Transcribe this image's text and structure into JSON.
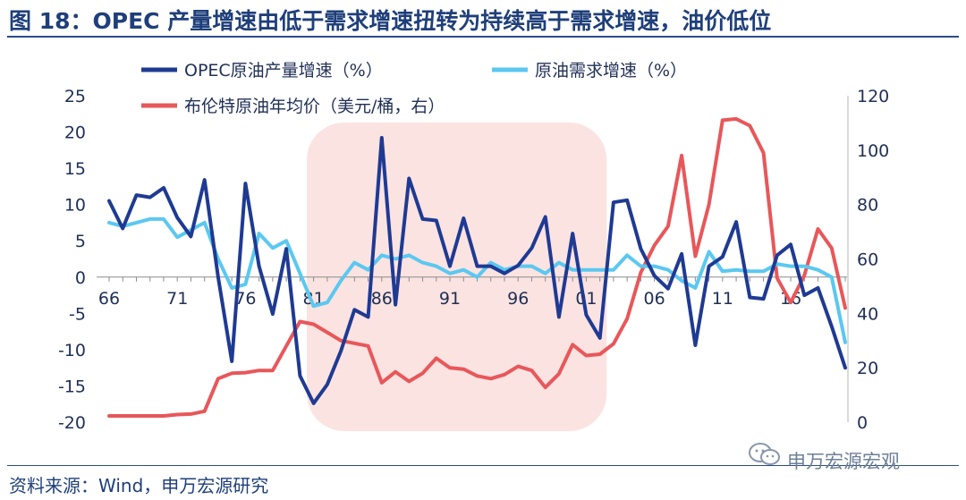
{
  "title": "图 18：OPEC 产量增速由低于需求增速扭转为持续高于需求增速，油价低位",
  "source": "资料来源：Wind，申万宏源研究",
  "watermark": "申万宏源宏观",
  "chart_data": {
    "type": "line",
    "x": [
      1966,
      1967,
      1968,
      1969,
      1970,
      1971,
      1972,
      1973,
      1974,
      1975,
      1976,
      1977,
      1978,
      1979,
      1980,
      1981,
      1982,
      1983,
      1984,
      1985,
      1986,
      1987,
      1988,
      1989,
      1990,
      1991,
      1992,
      1993,
      1994,
      1995,
      1996,
      1997,
      1998,
      1999,
      2000,
      2001,
      2002,
      2003,
      2004,
      2005,
      2006,
      2007,
      2008,
      2009,
      2010,
      2011,
      2012,
      2013,
      2014,
      2015,
      2016,
      2017,
      2018,
      2019,
      2020
    ],
    "xticks": [
      "66",
      "71",
      "76",
      "81",
      "86",
      "91",
      "96",
      "01",
      "06",
      "11",
      "16"
    ],
    "xtick_years": [
      1966,
      1971,
      1976,
      1981,
      1986,
      1991,
      1996,
      2001,
      2006,
      2011,
      2016
    ],
    "ylim_left": [
      -20,
      25
    ],
    "yticks_left": [
      -20,
      -15,
      -10,
      -5,
      0,
      5,
      10,
      15,
      20,
      25
    ],
    "ylim_right": [
      0,
      120
    ],
    "yticks_right": [
      0,
      20,
      40,
      60,
      80,
      100,
      120
    ],
    "shaded_region": [
      1980.5,
      2002.5
    ],
    "series": [
      {
        "name": "OPEC原油产量增速（%）",
        "axis": "left",
        "color": "#1f3a93",
        "values": [
          10.5,
          6.7,
          11.3,
          11,
          12.3,
          8.2,
          5.6,
          13.4,
          0,
          -11.6,
          12.9,
          1.5,
          -5.1,
          3.9,
          -13.6,
          -17.4,
          -14.8,
          -10.2,
          -4.5,
          -5.5,
          19.2,
          -3.8,
          13.6,
          8,
          7.8,
          1.5,
          8.1,
          1.5,
          1.5,
          0.5,
          1.6,
          4,
          8.3,
          -5.5,
          6,
          -5.2,
          -8.4,
          10.3,
          10.6,
          3.9,
          0.2,
          -1.6,
          3.2,
          -9.4,
          1.5,
          2.8,
          7.6,
          -2.8,
          -3,
          3,
          4.5,
          -2.5,
          -1.5,
          -6.8,
          -12.5
        ]
      },
      {
        "name": "原油需求增速（%）",
        "axis": "left",
        "color": "#5bc8f0",
        "values": [
          7.5,
          7,
          7.5,
          8,
          8,
          5.5,
          6.5,
          7.5,
          2.5,
          -1.5,
          -1,
          6,
          4,
          5,
          0.5,
          -4,
          -3.5,
          -0.5,
          2,
          1,
          3,
          2.5,
          3,
          2,
          1.5,
          0.5,
          1,
          0,
          2,
          1,
          1.5,
          1.5,
          0.5,
          2,
          1,
          1,
          1,
          1,
          3,
          1.5,
          1.5,
          1,
          -0.5,
          -1.5,
          3.5,
          0.8,
          1,
          0.8,
          0.8,
          1.8,
          1.5,
          1.5,
          1,
          0,
          -9
        ]
      },
      {
        "name": "布伦特原油年均价（美元/桶，右）",
        "axis": "right",
        "color": "#e8575a",
        "values": [
          2.3,
          2.3,
          2.3,
          2.3,
          2.3,
          2.8,
          3,
          4,
          16,
          18,
          18.2,
          19,
          19,
          28,
          37,
          36,
          33,
          30,
          29,
          28,
          14.5,
          18.5,
          15,
          18,
          23.5,
          20,
          19.5,
          17,
          16,
          17.5,
          20.5,
          19,
          12.8,
          17.8,
          28.5,
          24.5,
          25,
          28.8,
          38,
          55,
          65,
          72,
          98,
          61,
          80,
          111,
          111.5,
          109,
          99,
          53,
          44,
          54,
          71,
          64,
          42
        ]
      }
    ]
  }
}
